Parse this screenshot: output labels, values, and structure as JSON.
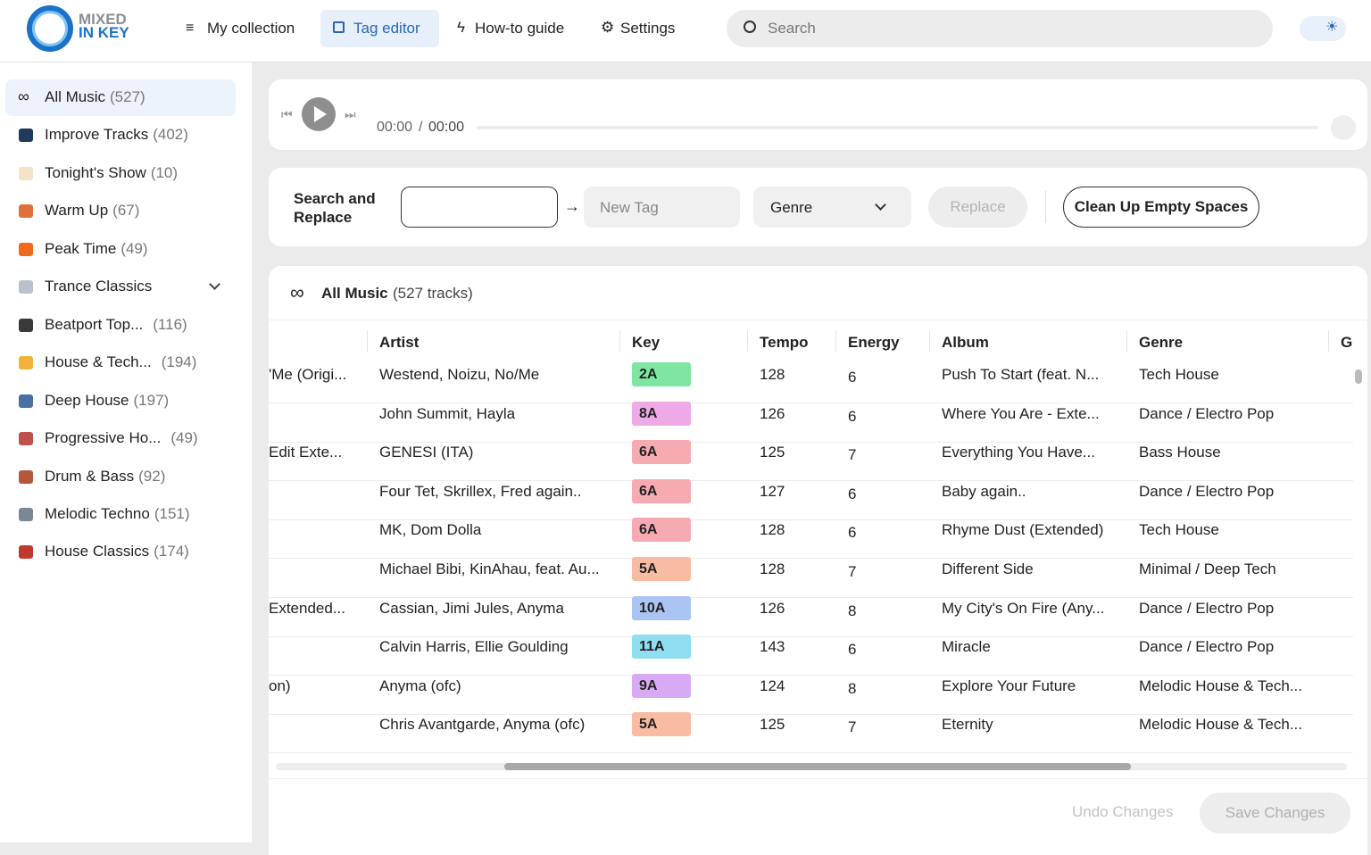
{
  "header": {
    "logo_lines": [
      "MIXED",
      "IN KEY"
    ],
    "nav": [
      "My collection",
      "Tag editor",
      "How-to guide",
      "Settings"
    ],
    "search_placeholder": "Search"
  },
  "sidebar": [
    {
      "name": "All Music",
      "count": "(527)"
    },
    {
      "name": "Improve Tracks",
      "count": "(402)"
    },
    {
      "name": "Tonight's Show",
      "count": "(10)"
    },
    {
      "name": "Warm Up",
      "count": "(67)"
    },
    {
      "name": "Peak Time",
      "count": "(49)"
    },
    {
      "name": "Trance Classics"
    },
    {
      "name": "Beatport Top...",
      "count": "(116)"
    },
    {
      "name": "House & Tech...",
      "count": "(194)"
    },
    {
      "name": "Deep House",
      "count": "(197)"
    },
    {
      "name": "Progressive Ho...",
      "count": "(49)"
    },
    {
      "name": "Drum & Bass",
      "count": "(92)"
    },
    {
      "name": "Melodic Techno",
      "count": "(151)"
    },
    {
      "name": "House Classics",
      "count": "(174)"
    }
  ],
  "player": {
    "current": "00:00",
    "separator": "/",
    "total": "00:00"
  },
  "search_replace": {
    "label": "Search and Replace",
    "new_tag_placeholder": "New Tag",
    "field": "Genre",
    "replace": "Replace",
    "clean_up": "Clean Up Empty Spaces"
  },
  "table": {
    "title": "All Music",
    "subtitle": "(527 tracks)",
    "columns": [
      "Artist",
      "Key",
      "Tempo",
      "Energy",
      "Album",
      "Genre",
      "G"
    ],
    "rows": [
      {
        "title": "'Me (Origi...",
        "artist": "Westend, Noizu, No/Me",
        "key": "2A",
        "key_color": "#7ee6a0",
        "tempo": "128",
        "energy": "6",
        "album": "Push To Start (feat. N...",
        "genre": "Tech House"
      },
      {
        "artist": "John Summit, Hayla",
        "key": "8A",
        "key_color": "#eeaae6",
        "tempo": "126",
        "energy": "6",
        "album": "Where You Are - Exte...",
        "genre": "Dance / Electro Pop"
      },
      {
        "title": "Edit Exte...",
        "artist": "GENESI (ITA)",
        "key": "6A",
        "key_color": "#f6aab2",
        "tempo": "125",
        "energy": "7",
        "album": "Everything You Have...",
        "genre": "Bass House"
      },
      {
        "artist": "Four Tet, Skrillex, Fred again..",
        "key": "6A",
        "key_color": "#f6aab2",
        "tempo": "127",
        "energy": "6",
        "album": "Baby again..",
        "genre": "Dance / Electro Pop"
      },
      {
        "artist": "MK, Dom Dolla",
        "key": "6A",
        "key_color": "#f6aab2",
        "tempo": "128",
        "energy": "6",
        "album": "Rhyme Dust (Extended)",
        "genre": "Tech House"
      },
      {
        "artist": "Michael Bibi, KinAhau, feat. Au...",
        "key": "5A",
        "key_color": "#f8bca2",
        "tempo": "128",
        "energy": "7",
        "album": "Different Side",
        "genre": "Minimal / Deep Tech"
      },
      {
        "title": "Extended...",
        "artist": "Cassian, Jimi Jules, Anyma",
        "key": "10A",
        "key_color": "#aac4f4",
        "tempo": "126",
        "energy": "8",
        "album": "My City's On Fire (Any...",
        "genre": "Dance / Electro Pop"
      },
      {
        "artist": "Calvin Harris, Ellie Goulding",
        "key": "11A",
        "key_color": "#90def2",
        "tempo": "143",
        "energy": "6",
        "album": "Miracle",
        "genre": "Dance / Electro Pop"
      },
      {
        "title": "on)",
        "artist": "Anyma (ofc)",
        "key": "9A",
        "key_color": "#d8aaf4",
        "tempo": "124",
        "energy": "8",
        "album": "Explore Your Future",
        "genre": "Melodic House & Tech..."
      },
      {
        "artist": "Chris Avantgarde, Anyma (ofc)",
        "key": "5A",
        "key_color": "#f8bca2",
        "tempo": "125",
        "energy": "7",
        "album": "Eternity",
        "genre": "Melodic House & Tech..."
      }
    ]
  },
  "footer": {
    "undo": "Undo Changes",
    "save": "Save Changes"
  }
}
